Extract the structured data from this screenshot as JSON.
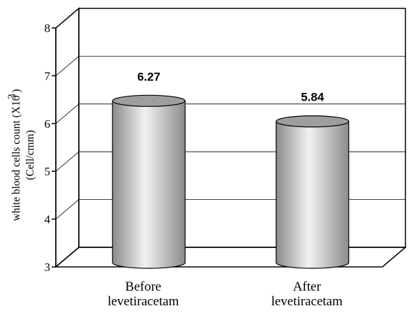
{
  "chart_data": {
    "type": "bar",
    "style": "3d-cylinder",
    "categories": [
      "Before\nlevetiracetam",
      "After\nlevetiracetam"
    ],
    "values": [
      6.27,
      5.84
    ],
    "data_labels": [
      "6.27",
      "5.84"
    ],
    "title": "",
    "ylabel_line1": "white blood cells count (X10  )",
    "ylabel_superscript": "3",
    "ylabel_line2": "(Cell/cmm)",
    "ylim": [
      3,
      8
    ],
    "yticks": [
      "3",
      "4",
      "5",
      "6",
      "7",
      "8"
    ],
    "grid": true,
    "legend": "none",
    "colors": {
      "bar_light": "#f2f2f2",
      "bar_dark": "#8c8c8c",
      "bar_top": "#9e9e9e",
      "axis": "#000000",
      "grid": "#000000"
    }
  }
}
